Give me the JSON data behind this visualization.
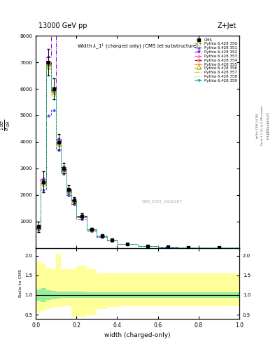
{
  "title_top": "13000 GeV pp",
  "title_right": "Z+Jet",
  "plot_title": "Width $\\lambda$_1$^1$ (charged only) (CMS jet substructure)",
  "xlabel": "width (charged-only)",
  "ylabel_main": "$\\frac{1}{\\sigma}\\frac{d\\sigma}{d\\lambda}$",
  "ylabel_ratio": "Ratio to CMS",
  "watermark": "CMS_2021_I1920187",
  "rivet_text": "Rivet 3.1.10, ≥ 3.2M events",
  "arxiv_text": "[arXiv:1306.3436]",
  "right_label_text": "mcplots.cern.ch",
  "xlim": [
    0,
    1
  ],
  "ylim_main": [
    0,
    8000
  ],
  "ylim_ratio": [
    0.4,
    2.2
  ],
  "yticks_main": [
    0,
    1000,
    2000,
    3000,
    4000,
    5000,
    6000,
    7000,
    8000
  ],
  "yticks_ratio": [
    0.5,
    1.0,
    1.5,
    2.0
  ],
  "bin_edges": [
    0.0,
    0.025,
    0.05,
    0.075,
    0.1,
    0.125,
    0.15,
    0.175,
    0.2,
    0.25,
    0.3,
    0.35,
    0.4,
    0.5,
    0.6,
    0.7,
    0.8,
    1.0
  ],
  "cms_values": [
    800,
    2500,
    7000,
    6000,
    4000,
    3000,
    2200,
    1800,
    1200,
    700,
    450,
    300,
    150,
    80,
    30,
    10,
    5
  ],
  "cms_errors": [
    200,
    400,
    500,
    400,
    300,
    200,
    150,
    120,
    100,
    60,
    40,
    30,
    20,
    15,
    8,
    5,
    3
  ],
  "series": [
    {
      "label": "Pythia 6.428 350",
      "color": "#aaaa00",
      "linestyle": "--",
      "marker": "s",
      "markerfill": "none"
    },
    {
      "label": "Pythia 6.428 351",
      "color": "#4444ff",
      "linestyle": "--",
      "marker": "^",
      "markerfill": "full"
    },
    {
      "label": "Pythia 6.428 352",
      "color": "#8800cc",
      "linestyle": "-.",
      "marker": "v",
      "markerfill": "full"
    },
    {
      "label": "Pythia 6.428 353",
      "color": "#ff44aa",
      "linestyle": "--",
      "marker": "^",
      "markerfill": "none"
    },
    {
      "label": "Pythia 6.428 354",
      "color": "#cc0000",
      "linestyle": "--",
      "marker": "o",
      "markerfill": "none"
    },
    {
      "label": "Pythia 6.428 355",
      "color": "#ff8800",
      "linestyle": "--",
      "marker": "*",
      "markerfill": "full"
    },
    {
      "label": "Pythia 6.428 356",
      "color": "#88aa00",
      "linestyle": "--",
      "marker": "s",
      "markerfill": "none"
    },
    {
      "label": "Pythia 6.428 357",
      "color": "#ddcc00",
      "linestyle": "-.",
      "marker": "None",
      "markerfill": "none"
    },
    {
      "label": "Pythia 6.428 358",
      "color": "#88dd44",
      "linestyle": ":",
      "marker": "None",
      "markerfill": "none"
    },
    {
      "label": "Pythia 6.428 359",
      "color": "#00aaaa",
      "linestyle": "--",
      "marker": "v",
      "markerfill": "full"
    }
  ],
  "series_values": [
    [
      750,
      2400,
      6800,
      5800,
      3900,
      2900,
      2100,
      1700,
      1150,
      680,
      430,
      290,
      145,
      78,
      28,
      9,
      4
    ],
    [
      700,
      2200,
      5000,
      5200,
      3700,
      2800,
      2000,
      1650,
      1100,
      660,
      420,
      280,
      140,
      75,
      27,
      9,
      4
    ],
    [
      780,
      2600,
      7200,
      9500,
      4100,
      3050,
      2200,
      1800,
      1200,
      700,
      450,
      300,
      150,
      80,
      30,
      10,
      5
    ],
    [
      760,
      2450,
      6900,
      5900,
      3950,
      2950,
      2150,
      1750,
      1170,
      690,
      440,
      295,
      148,
      79,
      29,
      9,
      4
    ],
    [
      770,
      2480,
      7000,
      6000,
      3980,
      2970,
      2170,
      1770,
      1180,
      695,
      445,
      298,
      149,
      79,
      29,
      10,
      4
    ],
    [
      760,
      2460,
      6950,
      5950,
      3960,
      2960,
      2160,
      1760,
      1175,
      692,
      443,
      296,
      148,
      79,
      29,
      9,
      4
    ],
    [
      755,
      2440,
      6920,
      5920,
      3940,
      2940,
      2140,
      1740,
      1160,
      685,
      438,
      292,
      146,
      78,
      28,
      9,
      4
    ],
    [
      740,
      2420,
      6870,
      5870,
      3920,
      2920,
      2120,
      1720,
      1145,
      678,
      432,
      288,
      144,
      77,
      28,
      9,
      4
    ],
    [
      750,
      2430,
      6900,
      5900,
      3930,
      2930,
      2130,
      1730,
      1152,
      682,
      435,
      290,
      145,
      78,
      28,
      9,
      4
    ],
    [
      760,
      2460,
      6950,
      5960,
      3960,
      2960,
      2160,
      1760,
      1175,
      692,
      443,
      296,
      148,
      79,
      29,
      9,
      4
    ]
  ],
  "ratio_green_low": [
    0.85,
    0.82,
    0.88,
    0.9,
    0.91,
    0.92,
    0.92,
    0.92,
    0.92,
    0.93,
    0.93,
    0.93,
    0.93,
    0.93,
    0.93,
    0.93,
    0.93
  ],
  "ratio_green_high": [
    1.15,
    1.18,
    1.12,
    1.1,
    1.09,
    1.08,
    1.08,
    1.08,
    1.08,
    1.07,
    1.07,
    1.07,
    1.07,
    1.07,
    1.07,
    1.07,
    1.07
  ],
  "ratio_yellow_low": [
    0.55,
    0.6,
    0.65,
    0.68,
    0.7,
    0.72,
    0.72,
    0.45,
    0.45,
    0.5,
    0.65,
    0.7,
    0.72,
    0.72,
    0.72,
    0.72,
    0.72
  ],
  "ratio_yellow_high": [
    1.85,
    1.8,
    1.7,
    1.65,
    2.05,
    1.65,
    1.65,
    1.65,
    1.75,
    1.65,
    1.55,
    1.55,
    1.55,
    1.55,
    1.55,
    1.55,
    1.55
  ]
}
